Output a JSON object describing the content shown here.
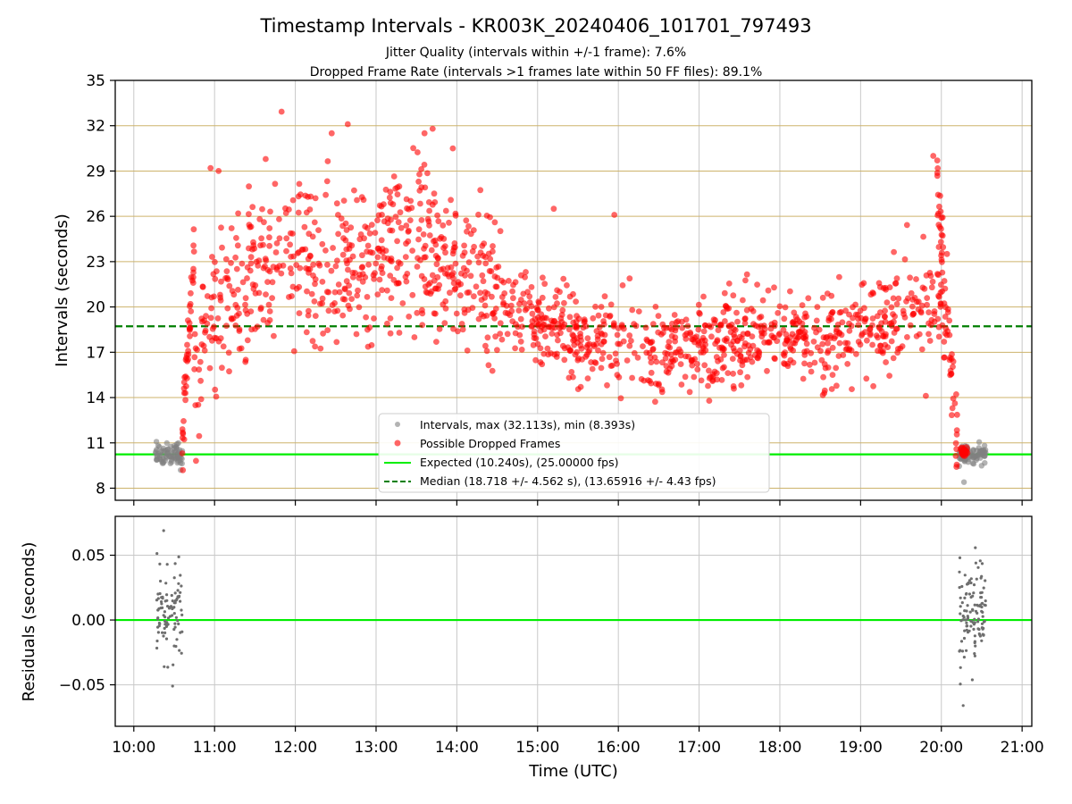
{
  "chart_data": [
    {
      "type": "scatter",
      "title": "Timestamp Intervals - KR003K_20240406_101701_797493",
      "subtitles": [
        "Jitter Quality (intervals within +/-1 frame): 7.6%",
        "Dropped Frame Rate (intervals >1 frames late within 50 FF files): 89.1%"
      ],
      "ylabel": "Intervals (seconds)",
      "ylim": [
        7.2,
        35
      ],
      "yticks": [
        "8",
        "11",
        "14",
        "17",
        "20",
        "23",
        "26",
        "29",
        "32",
        "35"
      ],
      "ytick_values": [
        8,
        11,
        14,
        17,
        20,
        23,
        26,
        29,
        32,
        35
      ],
      "xlim_hours": [
        9.77,
        21.12
      ],
      "grid": true,
      "legend_position": "lower-center",
      "legend": [
        "Intervals, max (32.113s), min (8.393s)",
        "Possible Dropped Frames",
        "Expected (10.240s), (25.00000 fps)",
        "Median (18.718 +/- 4.562 s), (13.65916 +/- 4.43 fps)"
      ],
      "expected_line": 10.24,
      "median_line": 18.718,
      "colors": {
        "intervals": "#808080",
        "dropped": "#ff0000",
        "expected": "#00ee00",
        "median": "#007f00",
        "horizontal_grid": "#cdb36b",
        "grid": "#c8c8c8"
      },
      "series": [
        {
          "name": "Intervals, max (32.113s), min (8.393s)",
          "points": [
            [
              10.3,
              10.3
            ],
            [
              10.35,
              10.2
            ],
            [
              10.4,
              10.5
            ],
            [
              10.45,
              10.1
            ],
            [
              10.5,
              10.8
            ],
            [
              10.55,
              10.3
            ],
            [
              10.58,
              9.2
            ],
            [
              20.25,
              10.4
            ],
            [
              20.3,
              9.9
            ],
            [
              20.35,
              10.1
            ],
            [
              20.4,
              10.5
            ],
            [
              20.45,
              10.2
            ],
            [
              20.52,
              10.4
            ],
            [
              20.28,
              8.4
            ]
          ]
        },
        {
          "name": "Possible Dropped Frames",
          "points": [
            [
              10.7,
              14.8
            ],
            [
              11.0,
              20.5
            ],
            [
              11.5,
              22.4
            ],
            [
              12.0,
              24.0
            ],
            [
              12.5,
              22.0
            ],
            [
              13.0,
              23.5
            ],
            [
              13.5,
              25.2
            ],
            [
              14.0,
              23.0
            ],
            [
              14.5,
              21.0
            ],
            [
              15.0,
              19.0
            ],
            [
              15.5,
              18.0
            ],
            [
              16.0,
              17.5
            ],
            [
              16.5,
              17.0
            ],
            [
              17.0,
              17.3
            ],
            [
              17.5,
              17.8
            ],
            [
              18.0,
              18.5
            ],
            [
              18.5,
              17.2
            ],
            [
              19.0,
              18.5
            ],
            [
              19.5,
              19.8
            ],
            [
              20.0,
              21.0
            ],
            [
              20.2,
              12.0
            ]
          ]
        }
      ]
    },
    {
      "type": "scatter",
      "ylabel": "Residuals (seconds)",
      "xlabel": "Time (UTC)",
      "ylim": [
        -0.082,
        0.08
      ],
      "yticks": [
        "0.05",
        "0.00",
        "−0.05"
      ],
      "ytick_values": [
        0.05,
        0.0,
        -0.05
      ],
      "xticks": [
        "10:00",
        "11:00",
        "12:00",
        "13:00",
        "14:00",
        "15:00",
        "16:00",
        "17:00",
        "18:00",
        "19:00",
        "20:00",
        "21:00"
      ],
      "xtick_values": [
        10,
        11,
        12,
        13,
        14,
        15,
        16,
        17,
        18,
        19,
        20,
        21
      ],
      "grid": true,
      "zero_line": 0.0,
      "series": [
        {
          "points": [
            [
              10.37,
              0.069
            ],
            [
              10.33,
              0.03
            ],
            [
              10.45,
              0.01
            ],
            [
              10.5,
              -0.02
            ],
            [
              10.48,
              -0.051
            ],
            [
              10.3,
              0.02
            ],
            [
              20.23,
              0.048
            ],
            [
              20.27,
              -0.066
            ],
            [
              20.3,
              0.0
            ],
            [
              20.35,
              0.02
            ],
            [
              20.42,
              -0.02
            ],
            [
              20.5,
              0.01
            ]
          ]
        }
      ]
    }
  ]
}
